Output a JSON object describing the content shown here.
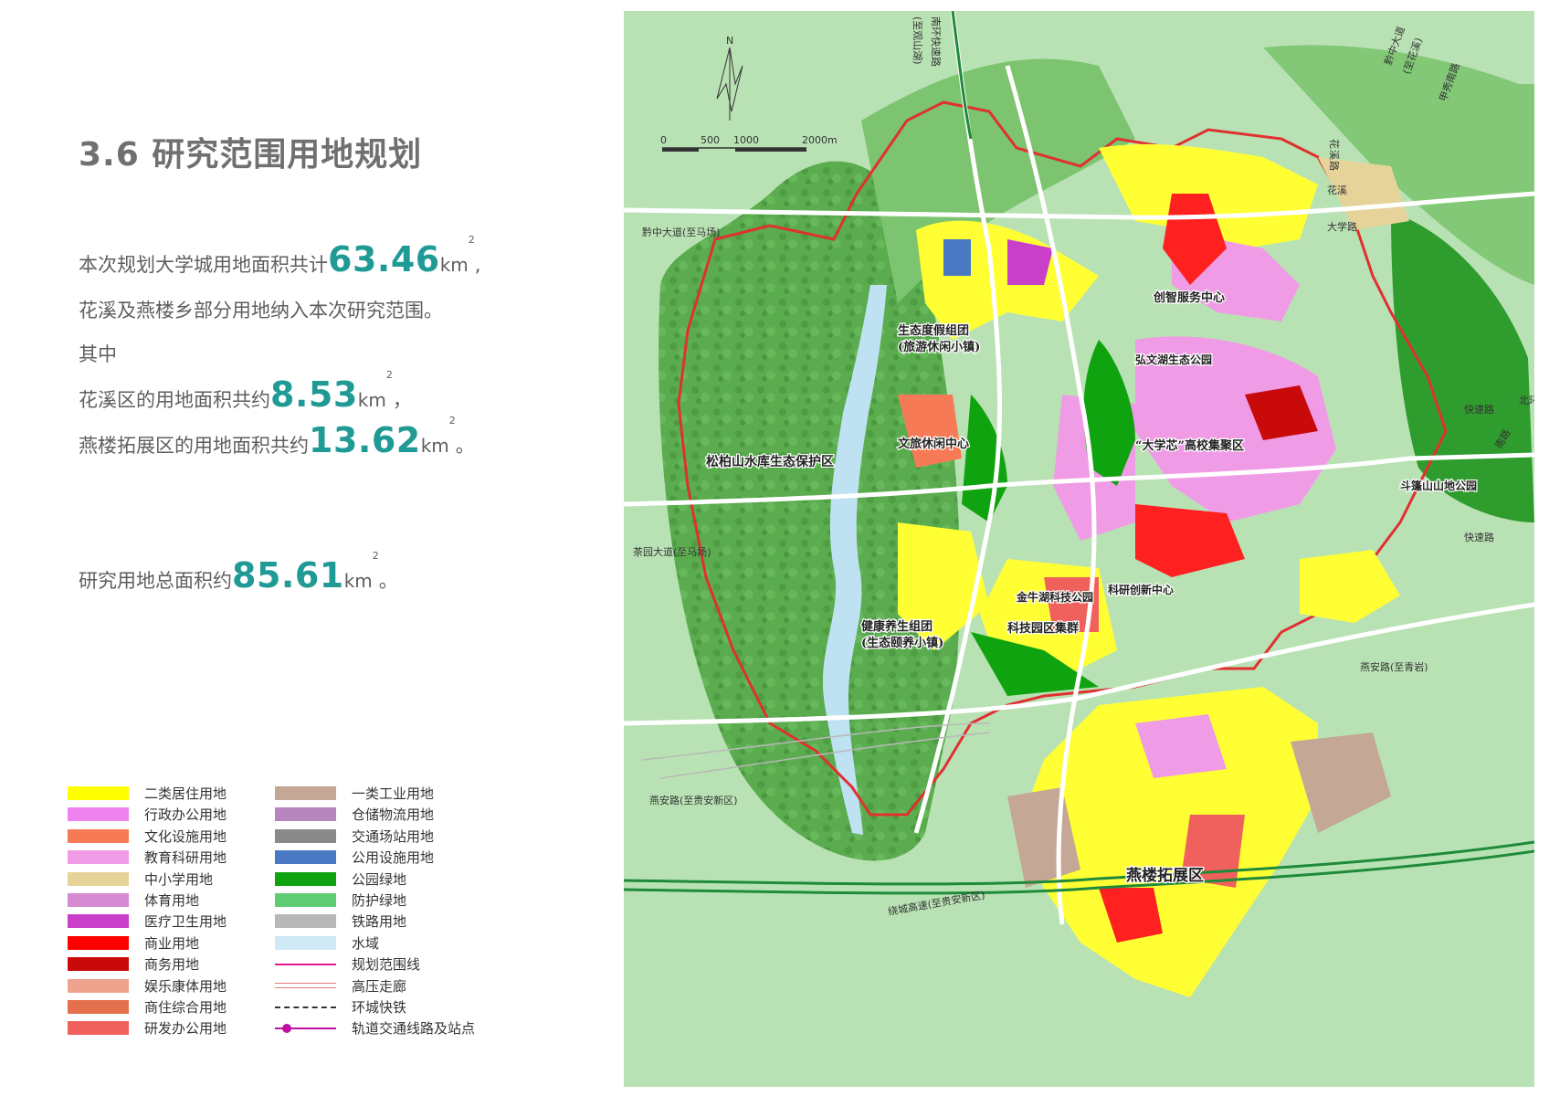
{
  "title": "3.6 研究范围用地规划",
  "summary": {
    "line1_prefix": "本次规划大学城用地面积共计",
    "total_plan_area": "63.46",
    "line1_unit": "km",
    "line1_suffix": ",",
    "line2": "花溪及燕楼乡部分用地纳入本次研究范围。",
    "line3": "其中",
    "line4_prefix": "花溪区的用地面积共约",
    "huaxi_area": "8.53",
    "line4_unit": "km",
    "line4_suffix": "，",
    "line5_prefix": "燕楼拓展区的用地面积共约",
    "yanlou_area": "13.62",
    "line5_unit": "km",
    "line5_suffix": "。",
    "line6_prefix": "研究用地总面积约",
    "research_area": "85.61",
    "line6_unit": "km",
    "line6_suffix": "。",
    "unit_power": "2"
  },
  "legend": {
    "left": [
      {
        "label": "二类居住用地",
        "color": "#ffff00",
        "style": "solid"
      },
      {
        "label": "行政办公用地",
        "color": "#ee82ee",
        "style": "solid"
      },
      {
        "label": "文化设施用地",
        "color": "#f77a57",
        "style": "solid"
      },
      {
        "label": "教育科研用地",
        "color": "#f09be6",
        "style": "solid"
      },
      {
        "label": "中小学用地",
        "color": "#e6d39a",
        "style": "solid"
      },
      {
        "label": "体育用地",
        "color": "#d58ad2",
        "style": "solid"
      },
      {
        "label": "医疗卫生用地",
        "color": "#c93fc9",
        "style": "solid"
      },
      {
        "label": "商业用地",
        "color": "#ff0000",
        "style": "solid"
      },
      {
        "label": "商务用地",
        "color": "#c80a0a",
        "style": "solid"
      },
      {
        "label": "娱乐康体用地",
        "color": "#efa38e",
        "style": "solid"
      },
      {
        "label": "商住综合用地",
        "color": "#e5704e",
        "style": "solid"
      },
      {
        "label": "研发办公用地",
        "color": "#f0605d",
        "style": "solid"
      }
    ],
    "right": [
      {
        "label": "一类工业用地",
        "color": "#c4a795",
        "style": "solid"
      },
      {
        "label": "仓储物流用地",
        "color": "#b785bd",
        "style": "solid"
      },
      {
        "label": "交通场站用地",
        "color": "#8a8a8a",
        "style": "solid"
      },
      {
        "label": "公用设施用地",
        "color": "#4a79c3",
        "style": "solid"
      },
      {
        "label": "公园绿地",
        "color": "#10a310",
        "style": "solid"
      },
      {
        "label": "防护绿地",
        "color": "#5fcc74",
        "style": "solid"
      },
      {
        "label": "铁路用地",
        "color": "#b8b8b8",
        "style": "solid"
      },
      {
        "label": "水域",
        "color": "#cfe9f7",
        "style": "solid"
      },
      {
        "label": "规划范围线",
        "color": "#e6198c",
        "style": "line"
      },
      {
        "label": "高压走廊",
        "color": "#e67b7b",
        "style": "double"
      },
      {
        "label": "环城快铁",
        "color": "#333333",
        "style": "dashdot"
      },
      {
        "label": "轨道交通线路及站点",
        "color": "#c0109f",
        "style": "rail"
      }
    ]
  },
  "map": {
    "compass": "N",
    "scale_ticks": [
      "0",
      "500",
      "1000",
      "2000m"
    ],
    "road_labels": [
      "南环快速路",
      "(至观山湖)",
      "黔中大道(至马场)",
      "茶园大道(至马场)",
      "燕安路(至贵安新区)",
      "燕安路(至青岩)",
      "绕城高速(至贵安新区)",
      "黔中大道",
      "(至花溪)",
      "甲秀南路",
      "花溪",
      "花",
      "溪",
      "路",
      "大学路",
      "快速路",
      "南路",
      "快速路",
      "北环路"
    ],
    "area_labels": [
      "松柏山水库生态保护区",
      "生态度假组团",
      "(旅游休闲小镇)",
      "创智服务中心",
      "弘文湖生态公园",
      "文旅休闲中心",
      "“大学芯”高校集聚区",
      "斗篷山山地公园",
      "金牛湖科技公园",
      "科研创新中心",
      "健康养生组团",
      "(生态颐养小镇)",
      "科技园区集群",
      "燕楼拓展区"
    ],
    "boundary_color": "#e03030"
  }
}
